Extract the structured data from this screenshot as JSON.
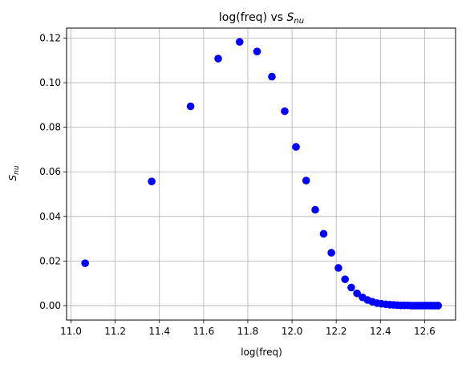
{
  "chart_data": {
    "type": "scatter",
    "title_main": "log(freq) vs ",
    "title_sym": "S",
    "title_sub": "nu",
    "xlabel": "log(freq)",
    "ylabel_sym": "S",
    "ylabel_sub": "nu",
    "xlim": [
      10.98,
      12.74
    ],
    "ylim": [
      -0.0065,
      0.1245
    ],
    "xticks": [
      11.0,
      11.2,
      11.4,
      11.6,
      11.8,
      12.0,
      12.2,
      12.4,
      12.6
    ],
    "xtick_labels": [
      "11.0",
      "11.2",
      "11.4",
      "11.6",
      "11.8",
      "12.0",
      "12.2",
      "12.4",
      "12.6"
    ],
    "yticks": [
      0.0,
      0.02,
      0.04,
      0.06,
      0.08,
      0.1,
      0.12
    ],
    "ytick_labels": [
      "0.00",
      "0.02",
      "0.04",
      "0.06",
      "0.08",
      "0.10",
      "0.12"
    ],
    "grid": true,
    "marker_color": "#0000ff",
    "x": [
      11.064,
      11.365,
      11.541,
      11.666,
      11.763,
      11.842,
      11.909,
      11.967,
      12.018,
      12.064,
      12.105,
      12.143,
      12.178,
      12.21,
      12.24,
      12.268,
      12.294,
      12.319,
      12.342,
      12.364,
      12.385,
      12.405,
      12.424,
      12.443,
      12.46,
      12.477,
      12.493,
      12.509,
      12.524,
      12.539,
      12.553,
      12.566,
      12.58,
      12.592,
      12.605,
      12.617,
      12.628,
      12.64,
      12.651,
      12.661
    ],
    "y": [
      0.019,
      0.0557,
      0.0894,
      0.1108,
      0.1183,
      0.114,
      0.1027,
      0.0872,
      0.0712,
      0.0561,
      0.043,
      0.0322,
      0.0237,
      0.0169,
      0.0118,
      0.0081,
      0.0055,
      0.0037,
      0.0025,
      0.0017,
      0.0011,
      0.0008,
      0.0006,
      0.0004,
      0.0003,
      0.0002,
      0.0001,
      0.0001,
      0.0001,
      0.0,
      0.0,
      0.0,
      0.0,
      0.0,
      0.0,
      0.0,
      0.0,
      0.0,
      0.0,
      0.0
    ]
  }
}
